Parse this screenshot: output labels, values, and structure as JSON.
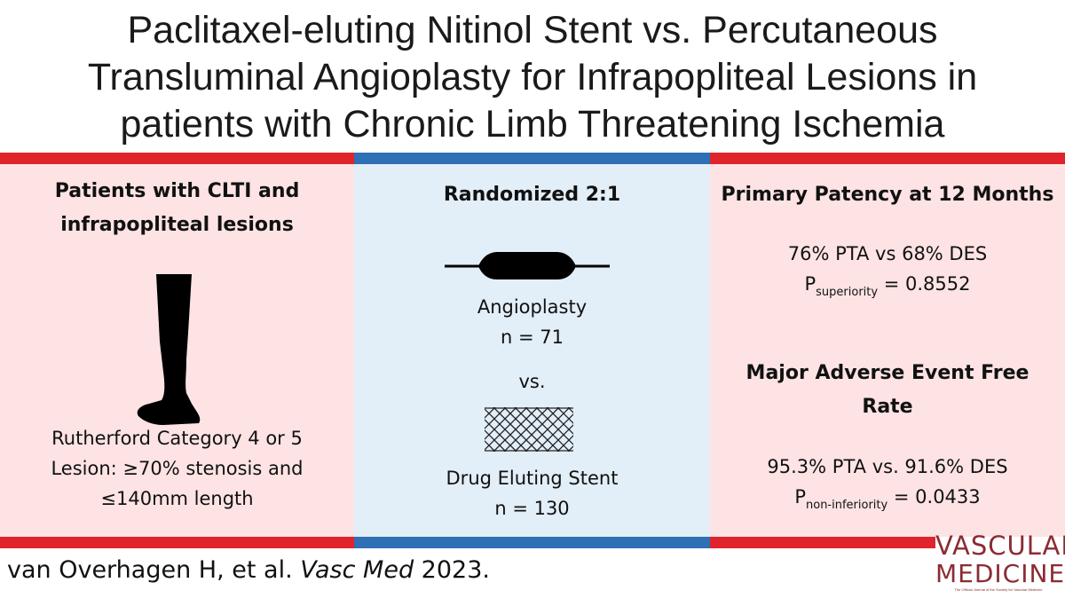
{
  "title": {
    "line1": "Paclitaxel-eluting Nitinol Stent vs. Percutaneous",
    "line2": "Transluminal Angioplasty for Infrapopliteal Lesions in",
    "line3": "patients with Chronic Limb Threatening Ischemia"
  },
  "colors": {
    "stripe_red": "#e0242b",
    "stripe_blue": "#2f6fb3",
    "panel_pink": "#fde3e4",
    "panel_blue": "#e2eef8",
    "logo": "#8b2b33"
  },
  "left_panel": {
    "heading_line1": "Patients with CLTI and",
    "heading_line2": "infrapopliteal lesions",
    "icon": "leg-icon",
    "text_line1": "Rutherford Category 4 or 5",
    "text_line2": "Lesion: ≥70% stenosis and",
    "text_line3": "≤140mm length"
  },
  "middle_panel": {
    "heading": "Randomized 2:1",
    "arm1_icon": "balloon-catheter-icon",
    "arm1_label": "Angioplasty",
    "arm1_n": "n = 71",
    "versus": "vs.",
    "arm2_icon": "stent-mesh-icon",
    "arm2_label": "Drug Eluting Stent",
    "arm2_n": "n = 130"
  },
  "right_panel": {
    "heading1": "Primary Patency at 12 Months",
    "result1": "76% PTA vs 68% DES",
    "p1_prefix": "P",
    "p1_sub": "superiority",
    "p1_value": " = 0.8552",
    "heading2_line1": "Major Adverse Event Free",
    "heading2_line2": "Rate",
    "result2": "95.3% PTA vs. 91.6% DES",
    "p2_prefix": "P",
    "p2_sub": "non-inferiority",
    "p2_value": " = 0.0433"
  },
  "footer": {
    "authors": "van Overhagen H, et al. ",
    "journal": "Vasc Med",
    "year": " 2023."
  },
  "logo": {
    "line1": "VASCULAR",
    "line2": "MEDICINE",
    "tagline": "The Official Journal of the Society for Vascular Medicine"
  }
}
